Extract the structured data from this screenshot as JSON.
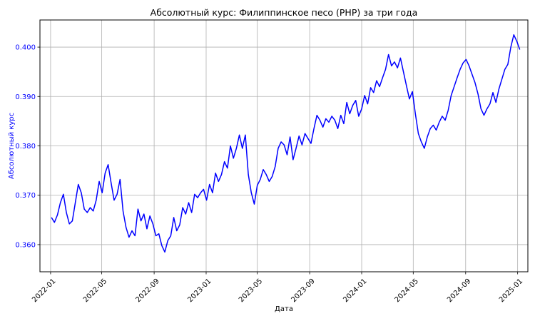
{
  "chart_data": {
    "type": "line",
    "title": "Абсолютный курс: Филиппинское песо (PHP) за три года",
    "xlabel": "Дата",
    "ylabel": "Абсолютный курс",
    "ylim": [
      0.3545,
      0.4055
    ],
    "xlim": [
      "2021-12-07",
      "2025-01-25"
    ],
    "grid": true,
    "line_color": "#0000ff",
    "y_ticks": [
      {
        "value": 0.36,
        "label": "0.360"
      },
      {
        "value": 0.37,
        "label": "0.370"
      },
      {
        "value": 0.38,
        "label": "0.380"
      },
      {
        "value": 0.39,
        "label": "0.390"
      },
      {
        "value": 0.4,
        "label": "0.400"
      }
    ],
    "x_ticks": [
      {
        "date": "2022-01-01",
        "label": "2022-01"
      },
      {
        "date": "2022-05-01",
        "label": "2022-05"
      },
      {
        "date": "2022-09-01",
        "label": "2022-09"
      },
      {
        "date": "2023-01-01",
        "label": "2023-01"
      },
      {
        "date": "2023-05-01",
        "label": "2023-05"
      },
      {
        "date": "2023-09-01",
        "label": "2023-09"
      },
      {
        "date": "2024-01-01",
        "label": "2024-01"
      },
      {
        "date": "2024-05-01",
        "label": "2024-05"
      },
      {
        "date": "2024-09-01",
        "label": "2024-09"
      },
      {
        "date": "2025-01-01",
        "label": "2025-01"
      }
    ],
    "series": [
      {
        "name": "PHP",
        "points": [
          [
            "2022-01-03",
            0.3655
          ],
          [
            "2022-01-10",
            0.3645
          ],
          [
            "2022-01-17",
            0.366
          ],
          [
            "2022-01-24",
            0.3685
          ],
          [
            "2022-01-31",
            0.3702
          ],
          [
            "2022-02-07",
            0.3665
          ],
          [
            "2022-02-14",
            0.3642
          ],
          [
            "2022-02-21",
            0.3648
          ],
          [
            "2022-02-28",
            0.3685
          ],
          [
            "2022-03-07",
            0.3722
          ],
          [
            "2022-03-14",
            0.3705
          ],
          [
            "2022-03-21",
            0.3672
          ],
          [
            "2022-03-28",
            0.3665
          ],
          [
            "2022-04-04",
            0.3675
          ],
          [
            "2022-04-11",
            0.3668
          ],
          [
            "2022-04-18",
            0.369
          ],
          [
            "2022-04-25",
            0.3728
          ],
          [
            "2022-05-02",
            0.3705
          ],
          [
            "2022-05-09",
            0.3745
          ],
          [
            "2022-05-16",
            0.3762
          ],
          [
            "2022-05-23",
            0.3725
          ],
          [
            "2022-05-30",
            0.369
          ],
          [
            "2022-06-06",
            0.3702
          ],
          [
            "2022-06-13",
            0.3732
          ],
          [
            "2022-06-20",
            0.3668
          ],
          [
            "2022-06-27",
            0.3635
          ],
          [
            "2022-07-04",
            0.3615
          ],
          [
            "2022-07-11",
            0.3628
          ],
          [
            "2022-07-18",
            0.3618
          ],
          [
            "2022-07-25",
            0.3672
          ],
          [
            "2022-08-01",
            0.3648
          ],
          [
            "2022-08-08",
            0.3662
          ],
          [
            "2022-08-15",
            0.3632
          ],
          [
            "2022-08-22",
            0.3658
          ],
          [
            "2022-08-29",
            0.3642
          ],
          [
            "2022-09-05",
            0.3618
          ],
          [
            "2022-09-12",
            0.3622
          ],
          [
            "2022-09-19",
            0.3598
          ],
          [
            "2022-09-26",
            0.3585
          ],
          [
            "2022-10-03",
            0.3608
          ],
          [
            "2022-10-10",
            0.3618
          ],
          [
            "2022-10-17",
            0.3655
          ],
          [
            "2022-10-24",
            0.3628
          ],
          [
            "2022-10-31",
            0.364
          ],
          [
            "2022-11-07",
            0.3675
          ],
          [
            "2022-11-14",
            0.3662
          ],
          [
            "2022-11-21",
            0.3685
          ],
          [
            "2022-11-28",
            0.3665
          ],
          [
            "2022-12-05",
            0.3702
          ],
          [
            "2022-12-12",
            0.3695
          ],
          [
            "2022-12-19",
            0.3705
          ],
          [
            "2022-12-26",
            0.3712
          ],
          [
            "2023-01-02",
            0.369
          ],
          [
            "2023-01-09",
            0.3722
          ],
          [
            "2023-01-16",
            0.3705
          ],
          [
            "2023-01-23",
            0.3745
          ],
          [
            "2023-01-30",
            0.3728
          ],
          [
            "2023-02-06",
            0.3742
          ],
          [
            "2023-02-13",
            0.3768
          ],
          [
            "2023-02-20",
            0.3755
          ],
          [
            "2023-02-27",
            0.38
          ],
          [
            "2023-03-06",
            0.3775
          ],
          [
            "2023-03-13",
            0.3795
          ],
          [
            "2023-03-20",
            0.3822
          ],
          [
            "2023-03-27",
            0.3795
          ],
          [
            "2023-04-03",
            0.3822
          ],
          [
            "2023-04-10",
            0.3742
          ],
          [
            "2023-04-17",
            0.3705
          ],
          [
            "2023-04-24",
            0.3682
          ],
          [
            "2023-05-01",
            0.372
          ],
          [
            "2023-05-08",
            0.3732
          ],
          [
            "2023-05-15",
            0.3752
          ],
          [
            "2023-05-22",
            0.3742
          ],
          [
            "2023-05-29",
            0.3728
          ],
          [
            "2023-06-05",
            0.3738
          ],
          [
            "2023-06-12",
            0.3758
          ],
          [
            "2023-06-19",
            0.3795
          ],
          [
            "2023-06-26",
            0.3808
          ],
          [
            "2023-07-03",
            0.3802
          ],
          [
            "2023-07-10",
            0.3782
          ],
          [
            "2023-07-17",
            0.3818
          ],
          [
            "2023-07-24",
            0.3772
          ],
          [
            "2023-07-31",
            0.3795
          ],
          [
            "2023-08-07",
            0.382
          ],
          [
            "2023-08-14",
            0.3802
          ],
          [
            "2023-08-21",
            0.3825
          ],
          [
            "2023-08-28",
            0.3815
          ],
          [
            "2023-09-04",
            0.3805
          ],
          [
            "2023-09-11",
            0.3835
          ],
          [
            "2023-09-18",
            0.3862
          ],
          [
            "2023-09-25",
            0.3852
          ],
          [
            "2023-10-02",
            0.3838
          ],
          [
            "2023-10-09",
            0.3855
          ],
          [
            "2023-10-16",
            0.3848
          ],
          [
            "2023-10-23",
            0.386
          ],
          [
            "2023-10-30",
            0.3852
          ],
          [
            "2023-11-06",
            0.3835
          ],
          [
            "2023-11-13",
            0.3862
          ],
          [
            "2023-11-20",
            0.3845
          ],
          [
            "2023-11-27",
            0.3888
          ],
          [
            "2023-12-04",
            0.3865
          ],
          [
            "2023-12-11",
            0.3882
          ],
          [
            "2023-12-18",
            0.3892
          ],
          [
            "2023-12-25",
            0.386
          ],
          [
            "2024-01-01",
            0.3875
          ],
          [
            "2024-01-08",
            0.3902
          ],
          [
            "2024-01-15",
            0.3885
          ],
          [
            "2024-01-22",
            0.3918
          ],
          [
            "2024-01-29",
            0.3908
          ],
          [
            "2024-02-05",
            0.3932
          ],
          [
            "2024-02-12",
            0.392
          ],
          [
            "2024-02-19",
            0.3938
          ],
          [
            "2024-02-26",
            0.3955
          ],
          [
            "2024-03-04",
            0.3985
          ],
          [
            "2024-03-11",
            0.3962
          ],
          [
            "2024-03-18",
            0.397
          ],
          [
            "2024-03-25",
            0.3958
          ],
          [
            "2024-04-01",
            0.3978
          ],
          [
            "2024-04-08",
            0.395
          ],
          [
            "2024-04-15",
            0.3922
          ],
          [
            "2024-04-22",
            0.3895
          ],
          [
            "2024-04-29",
            0.391
          ],
          [
            "2024-05-06",
            0.3865
          ],
          [
            "2024-05-13",
            0.3825
          ],
          [
            "2024-05-20",
            0.3808
          ],
          [
            "2024-05-27",
            0.3795
          ],
          [
            "2024-06-03",
            0.3818
          ],
          [
            "2024-06-10",
            0.3835
          ],
          [
            "2024-06-17",
            0.3842
          ],
          [
            "2024-06-24",
            0.3832
          ],
          [
            "2024-07-01",
            0.3848
          ],
          [
            "2024-07-08",
            0.386
          ],
          [
            "2024-07-15",
            0.3852
          ],
          [
            "2024-07-22",
            0.3872
          ],
          [
            "2024-07-29",
            0.3902
          ],
          [
            "2024-08-05",
            0.392
          ],
          [
            "2024-08-12",
            0.3938
          ],
          [
            "2024-08-19",
            0.3955
          ],
          [
            "2024-08-26",
            0.3968
          ],
          [
            "2024-09-02",
            0.3975
          ],
          [
            "2024-09-09",
            0.3962
          ],
          [
            "2024-09-16",
            0.3945
          ],
          [
            "2024-09-23",
            0.3928
          ],
          [
            "2024-09-30",
            0.3905
          ],
          [
            "2024-10-07",
            0.3875
          ],
          [
            "2024-10-14",
            0.3862
          ],
          [
            "2024-10-21",
            0.3875
          ],
          [
            "2024-10-28",
            0.3885
          ],
          [
            "2024-11-04",
            0.3908
          ],
          [
            "2024-11-11",
            0.3888
          ],
          [
            "2024-11-18",
            0.3915
          ],
          [
            "2024-11-25",
            0.3935
          ],
          [
            "2024-12-02",
            0.3955
          ],
          [
            "2024-12-09",
            0.3965
          ],
          [
            "2024-12-16",
            0.4
          ],
          [
            "2024-12-23",
            0.4025
          ],
          [
            "2024-12-30",
            0.4012
          ],
          [
            "2025-01-06",
            0.3995
          ]
        ]
      }
    ]
  }
}
